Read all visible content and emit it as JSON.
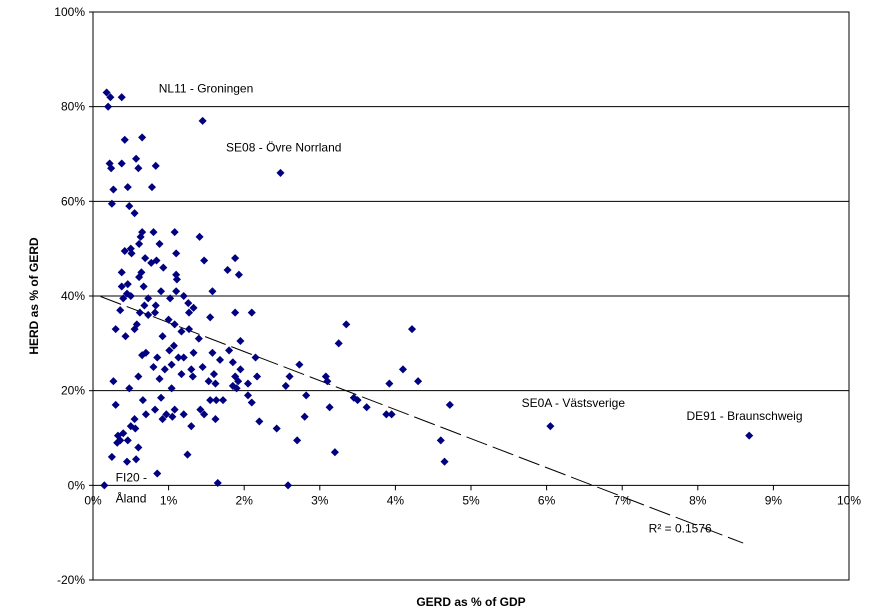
{
  "chart_data": {
    "type": "scatter",
    "title": "",
    "xlabel": "GERD as % of GDP",
    "ylabel": "HERD as % of GERD",
    "xlim": [
      0,
      10
    ],
    "ylim": [
      -20,
      100
    ],
    "x_ticks": [
      0,
      1,
      2,
      3,
      4,
      5,
      6,
      7,
      8,
      9,
      10
    ],
    "x_tick_labels": [
      "0%",
      "1%",
      "2%",
      "3%",
      "4%",
      "5%",
      "6%",
      "7%",
      "8%",
      "9%",
      "10%"
    ],
    "y_ticks": [
      -20,
      0,
      20,
      40,
      60,
      80,
      100
    ],
    "y_tick_labels": [
      "-20%",
      "0%",
      "20%",
      "40%",
      "60%",
      "80%",
      "100%"
    ],
    "gridlines": "horizontal",
    "legend": "none",
    "marker": "diamond",
    "marker_color": "#000080",
    "trendline": {
      "type": "linear",
      "x": [
        0.1,
        8.6
      ],
      "y": [
        39.9,
        -12.2
      ],
      "r2_text": "R² = 0.1576",
      "r2_label_at": [
        7.35,
        -10
      ]
    },
    "annotations": [
      {
        "text": "NL11 - Groningen",
        "x": 0.87,
        "y": 83
      },
      {
        "text": "SE08 - Övre Norrland",
        "x": 1.76,
        "y": 70.5
      },
      {
        "text": "SE0A - Västsverige",
        "x": 5.67,
        "y": 16.5
      },
      {
        "text": "DE91 - Braunschweig",
        "x": 7.85,
        "y": 13.8
      },
      {
        "text": "FI20 -",
        "x": 0.3,
        "y": 0.8
      },
      {
        "text": "Åland",
        "x": 0.3,
        "y": -3.6
      }
    ],
    "points": [
      [
        0.18,
        83
      ],
      [
        0.23,
        82
      ],
      [
        0.38,
        82
      ],
      [
        0.2,
        80
      ],
      [
        1.45,
        77
      ],
      [
        0.65,
        73.5
      ],
      [
        0.42,
        73
      ],
      [
        0.22,
        68
      ],
      [
        0.38,
        68
      ],
      [
        0.83,
        67.5
      ],
      [
        0.24,
        67
      ],
      [
        0.6,
        67
      ],
      [
        2.48,
        66
      ],
      [
        0.57,
        69
      ],
      [
        0.46,
        63
      ],
      [
        0.78,
        63
      ],
      [
        0.27,
        62.5
      ],
      [
        0.25,
        59.5
      ],
      [
        0.48,
        59
      ],
      [
        0.55,
        57.5
      ],
      [
        0.65,
        53.5
      ],
      [
        0.8,
        53.5
      ],
      [
        1.08,
        53.5
      ],
      [
        0.63,
        52.5
      ],
      [
        1.41,
        52.5
      ],
      [
        0.88,
        51
      ],
      [
        0.61,
        51
      ],
      [
        0.5,
        50
      ],
      [
        0.42,
        49.5
      ],
      [
        0.51,
        49
      ],
      [
        1.1,
        49
      ],
      [
        0.69,
        48
      ],
      [
        0.84,
        47.5
      ],
      [
        1.47,
        47.5
      ],
      [
        1.88,
        48
      ],
      [
        0.77,
        47
      ],
      [
        0.93,
        46
      ],
      [
        0.64,
        45
      ],
      [
        1.78,
        45.5
      ],
      [
        0.38,
        45
      ],
      [
        1.1,
        44.5
      ],
      [
        1.93,
        44.5
      ],
      [
        0.61,
        44
      ],
      [
        0.46,
        42.5
      ],
      [
        1.11,
        43.5
      ],
      [
        0.38,
        42
      ],
      [
        0.67,
        42
      ],
      [
        0.9,
        41
      ],
      [
        1.1,
        41
      ],
      [
        1.58,
        41
      ],
      [
        0.45,
        40.5
      ],
      [
        0.5,
        40
      ],
      [
        1.2,
        40
      ],
      [
        0.73,
        39.5
      ],
      [
        1.02,
        39.5
      ],
      [
        0.4,
        39.5
      ],
      [
        1.26,
        38.5
      ],
      [
        0.68,
        38
      ],
      [
        0.83,
        38
      ],
      [
        1.33,
        37.5
      ],
      [
        0.36,
        37
      ],
      [
        0.62,
        36.5
      ],
      [
        0.82,
        36.5
      ],
      [
        1.27,
        36.5
      ],
      [
        1.88,
        36.5
      ],
      [
        2.1,
        36.5
      ],
      [
        0.73,
        36
      ],
      [
        1.55,
        35.5
      ],
      [
        1.0,
        35
      ],
      [
        0.58,
        34
      ],
      [
        1.08,
        34
      ],
      [
        1.27,
        33
      ],
      [
        3.35,
        34
      ],
      [
        0.3,
        33
      ],
      [
        0.55,
        33
      ],
      [
        1.17,
        32.5
      ],
      [
        4.22,
        33
      ],
      [
        0.43,
        31.5
      ],
      [
        0.92,
        31.5
      ],
      [
        1.4,
        31
      ],
      [
        1.95,
        30.5
      ],
      [
        3.25,
        30
      ],
      [
        1.07,
        29.5
      ],
      [
        0.7,
        28
      ],
      [
        1.01,
        28.5
      ],
      [
        1.33,
        28
      ],
      [
        1.58,
        28
      ],
      [
        1.8,
        28.5
      ],
      [
        0.65,
        27.5
      ],
      [
        0.85,
        27
      ],
      [
        1.13,
        27
      ],
      [
        1.2,
        27
      ],
      [
        1.68,
        26.5
      ],
      [
        2.15,
        27
      ],
      [
        1.85,
        26
      ],
      [
        1.04,
        25.5
      ],
      [
        1.45,
        25
      ],
      [
        2.73,
        25.5
      ],
      [
        0.8,
        25
      ],
      [
        0.95,
        24.5
      ],
      [
        1.3,
        24.5
      ],
      [
        1.95,
        24.5
      ],
      [
        4.1,
        24.5
      ],
      [
        1.6,
        23.5
      ],
      [
        1.17,
        23.5
      ],
      [
        1.88,
        23
      ],
      [
        0.6,
        23
      ],
      [
        1.32,
        23
      ],
      [
        2.17,
        23
      ],
      [
        2.6,
        23
      ],
      [
        3.08,
        23
      ],
      [
        0.88,
        22.5
      ],
      [
        1.53,
        22
      ],
      [
        1.92,
        22
      ],
      [
        3.1,
        22
      ],
      [
        4.3,
        22
      ],
      [
        0.27,
        22
      ],
      [
        1.62,
        21.5
      ],
      [
        1.85,
        21
      ],
      [
        2.05,
        21.5
      ],
      [
        2.55,
        21
      ],
      [
        3.92,
        21.5
      ],
      [
        0.48,
        20.5
      ],
      [
        1.04,
        20.5
      ],
      [
        1.9,
        20.5
      ],
      [
        2.05,
        19
      ],
      [
        0.9,
        18.5
      ],
      [
        2.82,
        19
      ],
      [
        3.45,
        18.5
      ],
      [
        0.66,
        18
      ],
      [
        1.55,
        18
      ],
      [
        1.63,
        18
      ],
      [
        1.72,
        18
      ],
      [
        3.5,
        18
      ],
      [
        2.1,
        17.5
      ],
      [
        0.3,
        17
      ],
      [
        4.72,
        17
      ],
      [
        3.62,
        16.5
      ],
      [
        3.13,
        16.5
      ],
      [
        0.82,
        16
      ],
      [
        1.08,
        16
      ],
      [
        1.42,
        16
      ],
      [
        3.88,
        15
      ],
      [
        3.95,
        15
      ],
      [
        0.7,
        15
      ],
      [
        0.97,
        15
      ],
      [
        1.2,
        15
      ],
      [
        1.47,
        15
      ],
      [
        1.05,
        14.5
      ],
      [
        0.55,
        14
      ],
      [
        0.92,
        14
      ],
      [
        1.62,
        14
      ],
      [
        2.8,
        14.5
      ],
      [
        2.2,
        13.5
      ],
      [
        0.5,
        12.5
      ],
      [
        1.3,
        12.5
      ],
      [
        6.05,
        12.5
      ],
      [
        2.43,
        12
      ],
      [
        0.4,
        11
      ],
      [
        0.56,
        12
      ],
      [
        0.33,
        10.5
      ],
      [
        8.68,
        10.5
      ],
      [
        0.32,
        9
      ],
      [
        0.36,
        9.5
      ],
      [
        0.46,
        9.5
      ],
      [
        2.7,
        9.5
      ],
      [
        4.6,
        9.5
      ],
      [
        0.6,
        8
      ],
      [
        0.25,
        6
      ],
      [
        0.57,
        5.5
      ],
      [
        1.25,
        6.5
      ],
      [
        3.2,
        7
      ],
      [
        0.45,
        5
      ],
      [
        4.65,
        5
      ],
      [
        0.85,
        2.5
      ],
      [
        0.15,
        0
      ],
      [
        1.65,
        0.5
      ],
      [
        2.58,
        0
      ]
    ]
  }
}
